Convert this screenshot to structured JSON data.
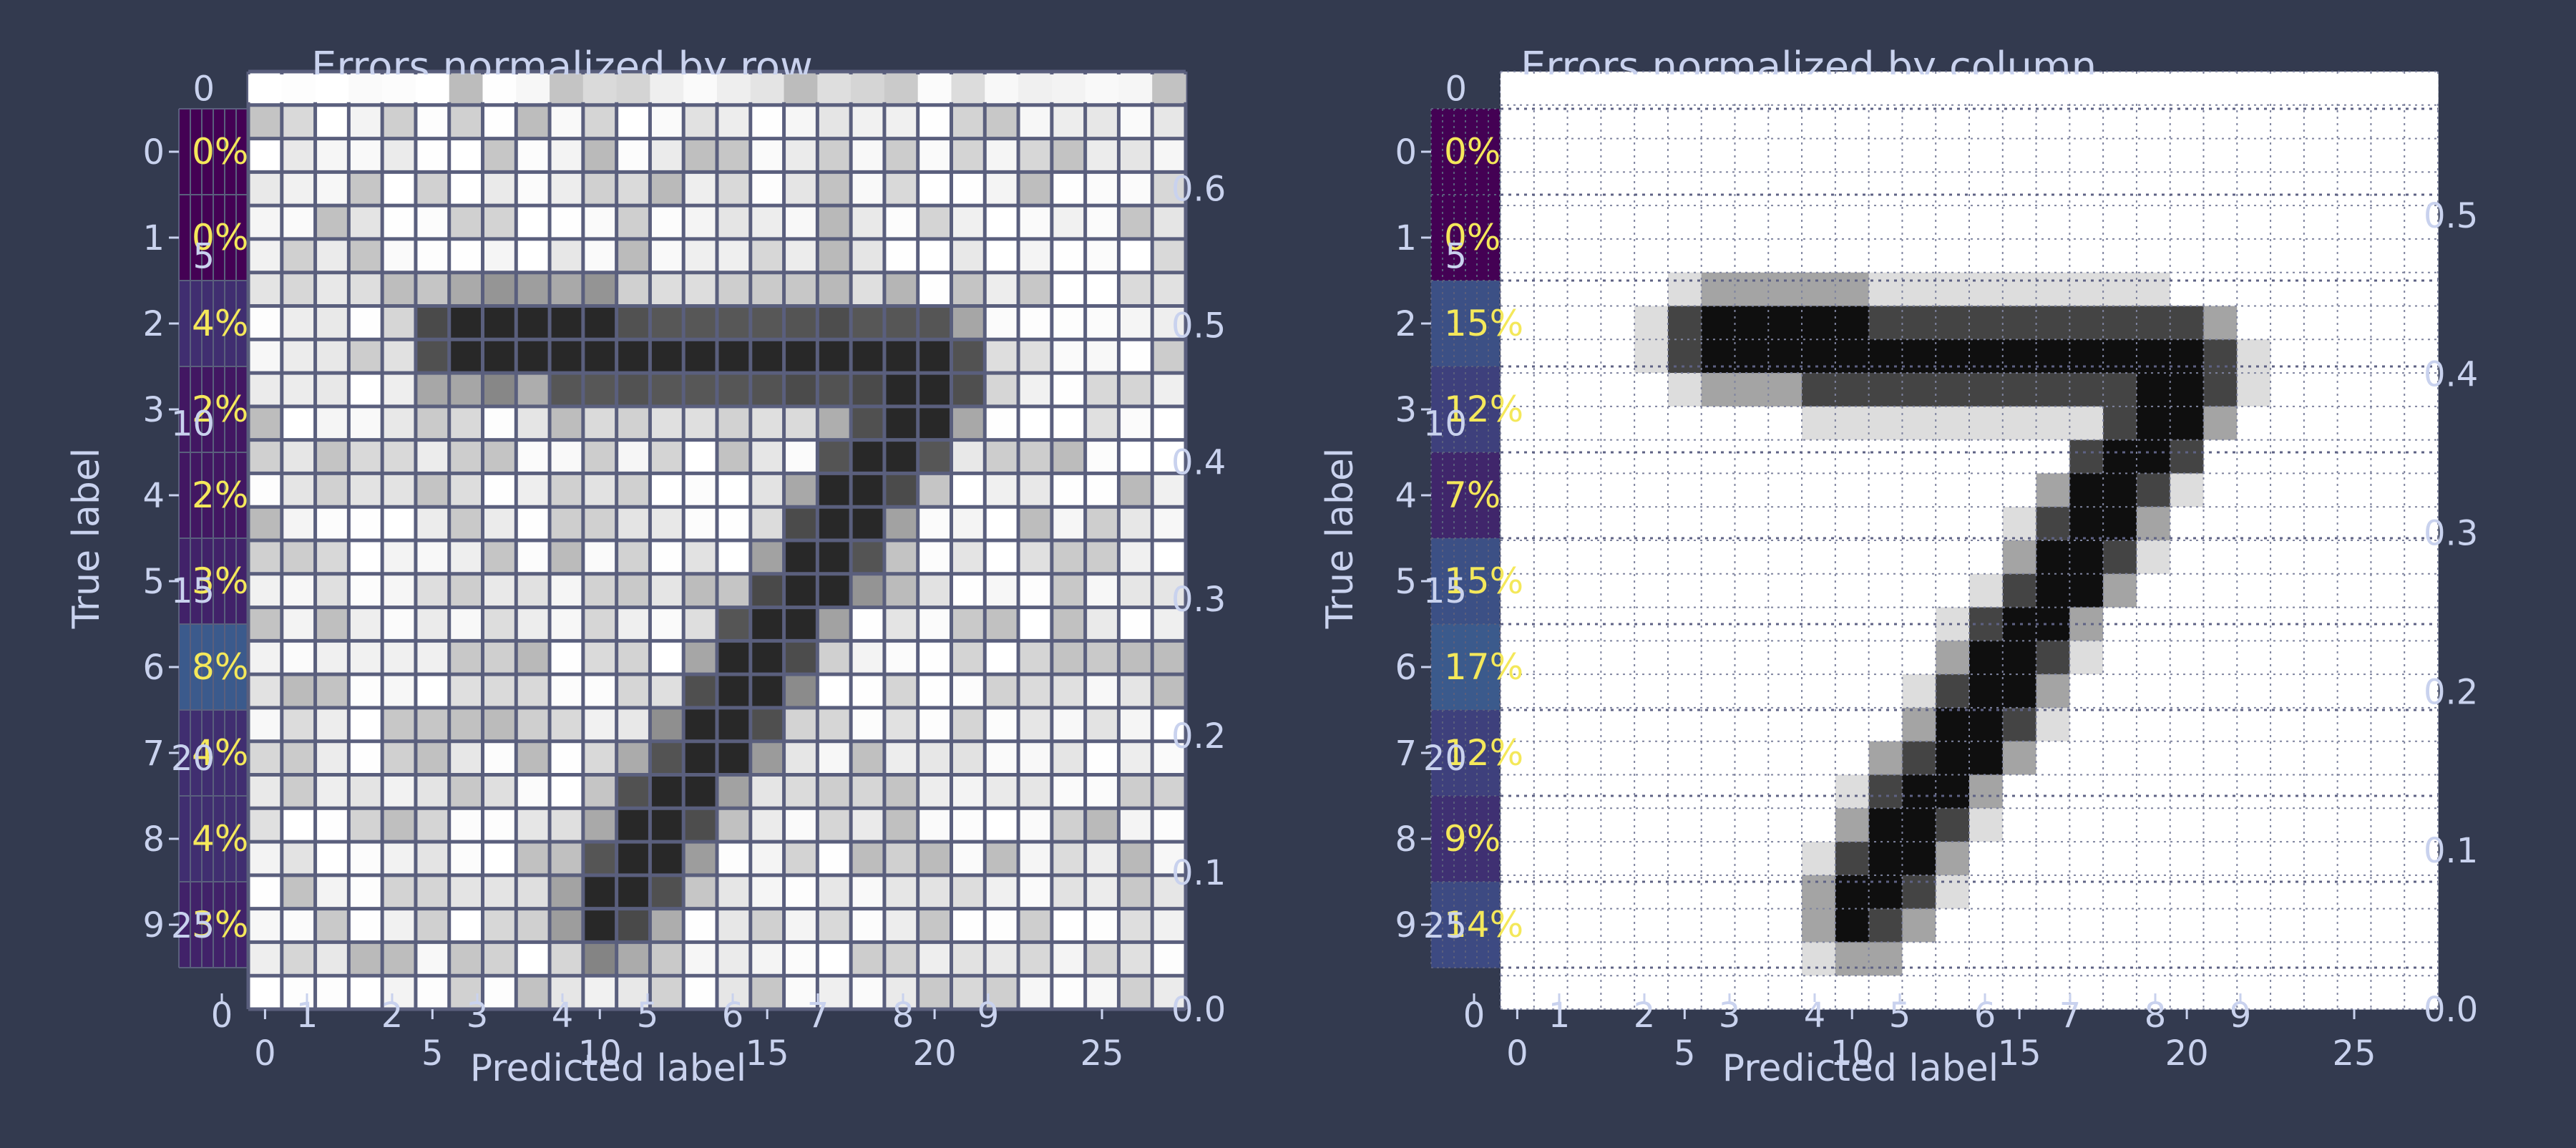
{
  "colors": {
    "background": "#333a4f",
    "text": "#c9d2ee",
    "label_text": "#f4e85a",
    "grid": "#5a5f7d",
    "cell_low": "#440154",
    "cell_high": "#3b5a8c"
  },
  "chart_data": [
    {
      "type": "heatmap",
      "title": "Errors normalized by row",
      "xlabel": "Predicted label",
      "ylabel": "True label",
      "categories": [
        "0",
        "1",
        "2",
        "3",
        "4",
        "5",
        "6",
        "7",
        "8",
        "9"
      ],
      "cell_values": [
        0,
        0,
        4,
        2,
        2,
        3,
        8,
        4,
        4,
        3
      ],
      "cell_labels": [
        "0%",
        "0%",
        "4%",
        "2%",
        "2%",
        "3%",
        "8%",
        "4%",
        "4%",
        "3%"
      ],
      "image_overlay": {
        "name": "digit-7",
        "x_ticks": [
          "0",
          "5",
          "10",
          "15",
          "20",
          "25"
        ],
        "y_ticks": [
          "0",
          "5",
          "10",
          "15",
          "20",
          "25"
        ],
        "x_range": [
          0,
          27
        ],
        "y_range": [
          0,
          27
        ]
      },
      "colorbar": {
        "ticks": [
          "0.0",
          "0.1",
          "0.2",
          "0.3",
          "0.4",
          "0.5",
          "0.6"
        ],
        "range": [
          0,
          0.65
        ]
      },
      "grid": true,
      "grid_style": "solid"
    },
    {
      "type": "heatmap",
      "title": "Errors normalized by column",
      "xlabel": "Predicted label",
      "ylabel": "True label",
      "categories": [
        "0",
        "1",
        "2",
        "3",
        "4",
        "5",
        "6",
        "7",
        "8",
        "9"
      ],
      "cell_values": [
        0,
        0,
        15,
        12,
        7,
        15,
        17,
        12,
        9,
        14
      ],
      "cell_labels": [
        "0%",
        "0%",
        "15%",
        "12%",
        "7%",
        "15%",
        "17%",
        "12%",
        "9%",
        "14%"
      ],
      "image_overlay": {
        "name": "digit-7",
        "x_ticks": [
          "0",
          "5",
          "10",
          "15",
          "20",
          "25"
        ],
        "y_ticks": [
          "0",
          "5",
          "10",
          "15",
          "20",
          "25"
        ],
        "x_range": [
          0,
          27
        ],
        "y_range": [
          0,
          27
        ]
      },
      "colorbar": {
        "ticks": [
          "0.0",
          "0.1",
          "0.2",
          "0.3",
          "0.4",
          "0.5"
        ],
        "range": [
          0,
          0.55
        ]
      },
      "grid": true,
      "grid_style": "dotted"
    }
  ]
}
